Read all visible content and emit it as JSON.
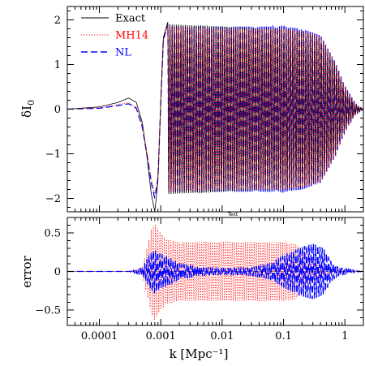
{
  "chart_data": [
    {
      "type": "line",
      "panel": "top",
      "ylabel": "δI0",
      "xscale": "log",
      "xlim": [
        3e-05,
        2
      ],
      "ylim": [
        -2.3,
        2.3
      ],
      "yticks": [
        2,
        1,
        0,
        -1,
        -2
      ],
      "yticklabels": [
        "2",
        "1",
        "0",
        "−1",
        "−2"
      ],
      "annotation": "Text",
      "legend": {
        "placement": "top-left",
        "entries": [
          {
            "label": "Exact",
            "color": "#000000",
            "style": "solid"
          },
          {
            "label": "MH14",
            "color": "#ff0000",
            "style": "dotted"
          },
          {
            "label": "NL",
            "color": "#0000ff",
            "style": "dashed"
          }
        ]
      },
      "series": [
        {
          "name": "Exact",
          "color": "#000000",
          "k": [
            3e-05,
            0.0001,
            0.0002,
            0.0003,
            0.0004,
            0.0005,
            0.0006,
            0.0007,
            0.0008,
            0.0009,
            0.001,
            0.0011,
            0.0013
          ],
          "values": [
            0.0,
            0.05,
            0.15,
            0.25,
            0.15,
            -0.3,
            -1.1,
            -1.9,
            -2.3,
            -1.6,
            0.2,
            1.6,
            1.95
          ],
          "oscillation_amplitude": {
            "k": [
              0.0013,
              0.01,
              0.05,
              0.1,
              0.2,
              0.4,
              0.7,
              1.0,
              1.5,
              2.0
            ],
            "amp": [
              1.9,
              1.85,
              1.8,
              1.8,
              1.75,
              1.6,
              1.0,
              0.45,
              0.1,
              0.0
            ],
            "cycles_per_decade": 28
          }
        },
        {
          "name": "MH14",
          "color": "#ff0000",
          "k": [
            3e-05,
            0.0001,
            0.0002,
            0.0003,
            0.0004,
            0.0005,
            0.0006,
            0.0007,
            0.0008,
            0.0009,
            0.001,
            0.0011,
            0.0013
          ],
          "values": [
            0.0,
            0.03,
            0.1,
            0.15,
            0.05,
            -0.35,
            -1.0,
            -1.55,
            -1.9,
            -1.5,
            0.1,
            1.5,
            1.9
          ],
          "oscillation_amplitude": {
            "k": [
              0.0013,
              0.01,
              0.05,
              0.1,
              0.2,
              0.4,
              0.7,
              1.0,
              1.5,
              2.0
            ],
            "amp": [
              1.85,
              1.8,
              1.8,
              1.8,
              1.75,
              1.65,
              1.05,
              0.5,
              0.12,
              0.0
            ],
            "cycles_per_decade": 28
          }
        },
        {
          "name": "NL",
          "color": "#0000ff",
          "k": [
            3e-05,
            0.0001,
            0.0002,
            0.0003,
            0.0004,
            0.0005,
            0.0006,
            0.0007,
            0.0008,
            0.0009,
            0.001,
            0.0011,
            0.0013
          ],
          "values": [
            0.0,
            0.02,
            0.08,
            0.12,
            0.02,
            -0.4,
            -1.05,
            -1.65,
            -2.0,
            -1.55,
            0.15,
            1.55,
            1.9
          ],
          "oscillation_amplitude": {
            "k": [
              0.0013,
              0.01,
              0.05,
              0.1,
              0.2,
              0.4,
              0.7,
              1.0,
              1.5,
              2.0
            ],
            "amp": [
              1.85,
              1.85,
              1.85,
              1.85,
              1.8,
              1.65,
              1.05,
              0.5,
              0.12,
              0.0
            ],
            "cycles_per_decade": 28
          }
        }
      ]
    },
    {
      "type": "line",
      "panel": "bottom",
      "ylabel": "error",
      "xlabel": "k [Mpc⁻¹]",
      "xscale": "log",
      "xlim": [
        3e-05,
        2
      ],
      "ylim": [
        -0.7,
        0.7
      ],
      "yticks": [
        0.5,
        0,
        -0.5
      ],
      "yticklabels": [
        "0.5",
        "0",
        "−0.5"
      ],
      "xticks": [
        0.0001,
        0.001,
        0.01,
        0.1,
        1
      ],
      "xticklabels": [
        "0.0001",
        "0.001",
        "0.01",
        "0.1",
        "1"
      ],
      "reference_line": {
        "y": 0,
        "color": "#999999"
      },
      "series": [
        {
          "name": "MH14",
          "color": "#ff0000",
          "envelope": {
            "k": [
              3e-05,
              0.0003,
              0.0005,
              0.0006,
              0.0007,
              0.0008,
              0.0009,
              0.001,
              0.0012,
              0.002,
              0.01,
              0.1,
              0.15,
              0.2,
              0.3,
              0.5,
              1,
              2
            ],
            "amp": [
              0.0,
              0.0,
              0.05,
              0.3,
              0.55,
              0.63,
              0.55,
              0.5,
              0.42,
              0.38,
              0.38,
              0.38,
              0.36,
              0.3,
              0.15,
              0.04,
              0.02,
              0.0
            ]
          },
          "cycles_per_decade": 28
        },
        {
          "name": "NL",
          "color": "#0000ff",
          "envelope": {
            "k": [
              3e-05,
              0.0003,
              0.0005,
              0.0007,
              0.0008,
              0.001,
              0.0013,
              0.002,
              0.005,
              0.01,
              0.03,
              0.06,
              0.1,
              0.2,
              0.3,
              0.45,
              0.6,
              0.8,
              1.0,
              1.2,
              1.5,
              2
            ],
            "amp": [
              0.0,
              0.0,
              0.05,
              0.25,
              0.28,
              0.22,
              0.18,
              0.1,
              0.05,
              0.04,
              0.05,
              0.1,
              0.2,
              0.32,
              0.36,
              0.3,
              0.12,
              0.05,
              0.04,
              0.03,
              0.01,
              0.0
            ]
          },
          "cycles_per_decade": 28
        }
      ]
    }
  ]
}
